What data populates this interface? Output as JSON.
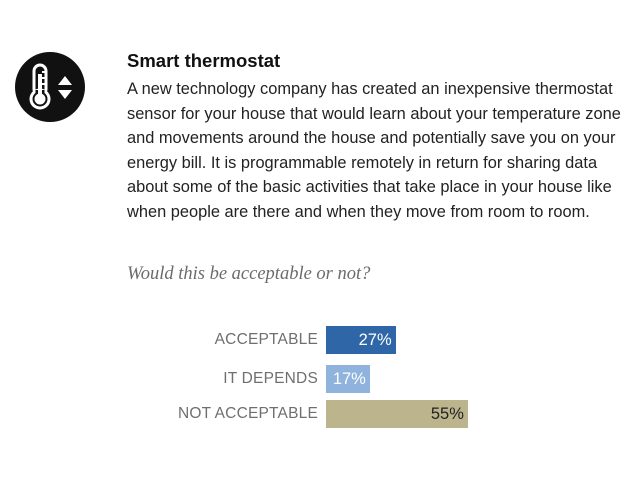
{
  "header": {
    "icon": "thermometer-icon",
    "title": "Smart thermostat",
    "description": "A new technology company has created an inexpensive thermostat sensor for your house that would learn about your temperature zone and movements around the house and potentially save you on your energy bill. It is programmable remotely in return for sharing data about some of the basic activities that take place in your house like when people are there and when they move from room to room.",
    "question": "Would this be acceptable or not?"
  },
  "chart_data": {
    "type": "bar",
    "orientation": "horizontal",
    "title": "",
    "xlabel": "",
    "ylabel": "",
    "unit": "%",
    "categories": [
      "ACCEPTABLE",
      "IT DEPENDS",
      "NOT ACCEPTABLE"
    ],
    "values": [
      27,
      17,
      55
    ],
    "value_labels": [
      "27%",
      "17%",
      "55%"
    ],
    "xlim": [
      0,
      100
    ],
    "grid": false,
    "legend": "none",
    "colors": [
      "#2f66a8",
      "#8fb3dd",
      "#bcb48c"
    ],
    "label_colors": [
      "#ffffff",
      "#ffffff",
      "#222222"
    ]
  }
}
